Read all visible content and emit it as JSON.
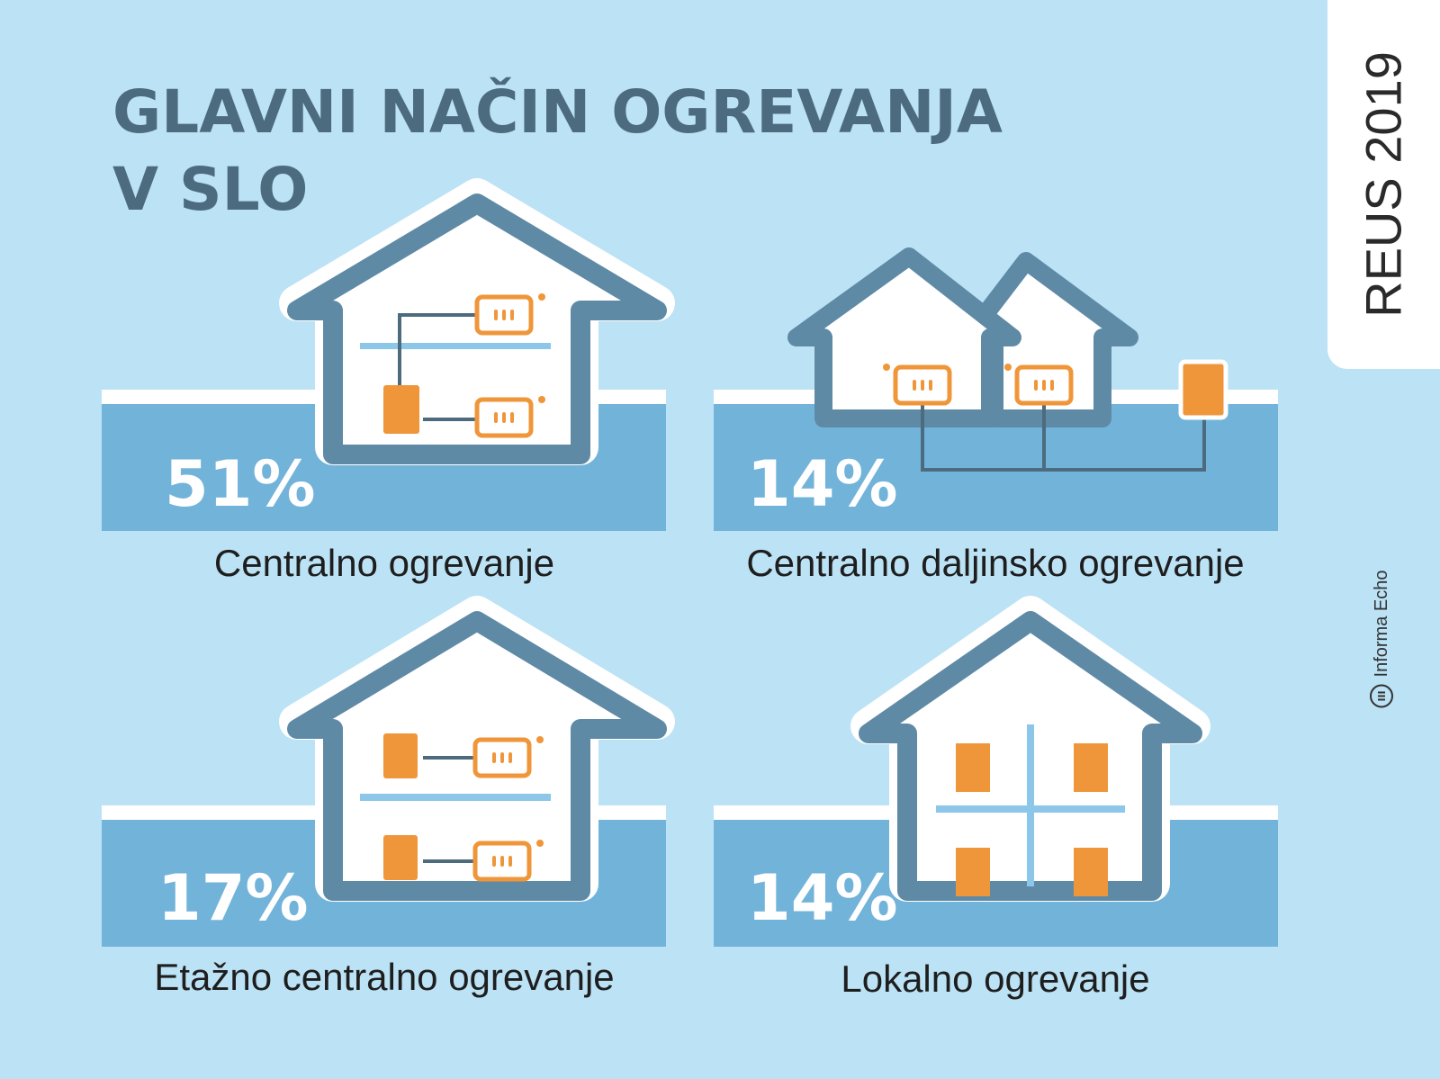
{
  "title": {
    "line1": "GLAVNI NAČIN OGREVANJA",
    "line2": "V SLO"
  },
  "badge": "REUS 2019",
  "credit": "Informa Echo",
  "items": [
    {
      "percent": "51%",
      "label": "Centralno ogrevanje"
    },
    {
      "percent": "14%",
      "label": "Centralno daljinsko ogrevanje"
    },
    {
      "percent": "17%",
      "label": "Etažno centralno ogrevanje"
    },
    {
      "percent": "14%",
      "label": "Lokalno ogrevanje"
    }
  ],
  "chart_data": {
    "type": "table",
    "title": "GLAVNI NAČIN OGREVANJA V SLO",
    "categories": [
      "Centralno ogrevanje",
      "Centralno daljinsko ogrevanje",
      "Etažno centralno ogrevanje",
      "Lokalno ogrevanje"
    ],
    "values": [
      51,
      14,
      17,
      14
    ],
    "unit": "%"
  },
  "colors": {
    "background": "#bce2f5",
    "band": "#72b3da",
    "house_outline": "#5f8aa6",
    "heater": "#f0963a",
    "title": "#4d6b7e"
  }
}
